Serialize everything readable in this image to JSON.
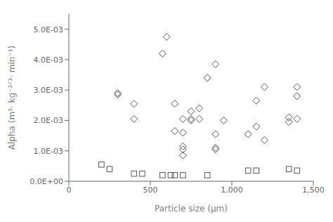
{
  "chart_data": {
    "type": "scatter",
    "xlabel": "Particle size (μm)",
    "ylabel": "Alpha (m³· kg⁻²ᐟ³· min⁻¹)",
    "xlim": [
      0,
      1500
    ],
    "ylim": [
      0.0,
      0.0055
    ],
    "xticks": [
      0,
      500,
      {
        "value": 1000,
        "label": "1,000"
      },
      {
        "value": 1500,
        "label": "1,500"
      }
    ],
    "yticks": [
      {
        "value": 0.0,
        "label": "0.0E+00"
      },
      {
        "value": 0.001,
        "label": "1.0E-03"
      },
      {
        "value": 0.002,
        "label": "2.0E-03"
      },
      {
        "value": 0.003,
        "label": "3.0E-03"
      },
      {
        "value": 0.004,
        "label": "4.0E-03"
      },
      {
        "value": 0.005,
        "label": "5.0E-03"
      }
    ],
    "grid": false,
    "series": [
      {
        "marker": "diamond",
        "color": "#555555",
        "x": [
          300,
          300,
          400,
          400,
          575,
          600,
          650,
          650,
          700,
          700,
          700,
          700,
          700,
          750,
          750,
          750,
          800,
          800,
          850,
          900,
          900,
          900,
          900,
          950,
          1100,
          1150,
          1150,
          1200,
          1200,
          1350,
          1350,
          1400,
          1400,
          1400
        ],
        "values": [
          0.00285,
          0.0029,
          0.00205,
          0.00255,
          0.0042,
          0.00475,
          0.00165,
          0.00255,
          0.00085,
          0.00105,
          0.00115,
          0.0016,
          0.00205,
          0.0023,
          0.002,
          0.00205,
          0.00205,
          0.0024,
          0.0034,
          0.00385,
          0.00105,
          0.0011,
          0.00155,
          0.002,
          0.00155,
          0.0018,
          0.00265,
          0.00135,
          0.0031,
          0.00195,
          0.0021,
          0.0028,
          0.0031,
          0.00205
        ]
      },
      {
        "marker": "square",
        "color": "#555555",
        "x": [
          200,
          250,
          400,
          450,
          575,
          625,
          650,
          700,
          850,
          1100,
          1150,
          1350,
          1400
        ],
        "values": [
          0.00055,
          0.0004,
          0.00025,
          0.00025,
          0.0002,
          0.0002,
          0.0002,
          0.0002,
          0.0002,
          0.00035,
          0.00035,
          0.0004,
          0.00035
        ]
      }
    ]
  }
}
